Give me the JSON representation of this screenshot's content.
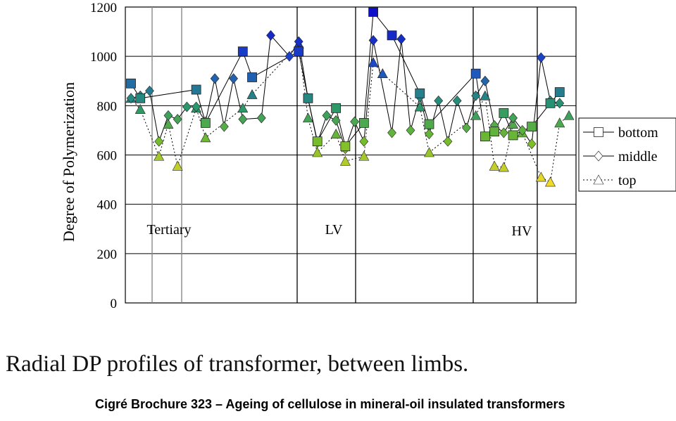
{
  "chart_data": {
    "type": "line",
    "ylabel": "Degree of Polymerization",
    "ylim": [
      0,
      1200
    ],
    "yticks": [
      0,
      200,
      400,
      600,
      800,
      1000,
      1200
    ],
    "grid": true,
    "legend_position": "right",
    "regions": [
      "Tertiary",
      "LV",
      "HV"
    ],
    "x_positions": 48,
    "series": [
      {
        "name": "bottom",
        "marker": "square",
        "line": "solid",
        "points": [
          [
            1,
            890
          ],
          [
            2,
            830
          ],
          [
            8,
            865
          ],
          [
            9,
            730
          ],
          [
            13,
            1020
          ],
          [
            14,
            915
          ],
          [
            19,
            1020
          ],
          [
            20,
            830
          ],
          [
            21,
            655
          ],
          [
            23,
            790
          ],
          [
            24,
            635
          ],
          [
            26,
            730
          ],
          [
            27,
            1180
          ],
          [
            29,
            1085
          ],
          [
            32,
            850
          ],
          [
            33,
            725
          ],
          [
            38,
            930
          ],
          [
            39,
            675
          ],
          [
            40,
            695
          ],
          [
            41,
            770
          ],
          [
            42,
            680
          ],
          [
            44,
            715
          ],
          [
            46,
            810
          ],
          [
            47,
            855
          ]
        ]
      },
      {
        "name": "middle",
        "marker": "diamond",
        "line": "solid",
        "points": [
          [
            1,
            830
          ],
          [
            2,
            840
          ],
          [
            3,
            860
          ],
          [
            4,
            655
          ],
          [
            5,
            760
          ],
          [
            6,
            745
          ],
          [
            7,
            795
          ],
          [
            8,
            795
          ],
          [
            9,
            735
          ],
          [
            10,
            910
          ],
          [
            11,
            715
          ],
          [
            12,
            910
          ],
          [
            13,
            745
          ],
          [
            15,
            750
          ],
          [
            16,
            1085
          ],
          [
            18,
            1000
          ],
          [
            19,
            1060
          ],
          [
            20,
            830
          ],
          [
            21,
            650
          ],
          [
            22,
            760
          ],
          [
            23,
            740
          ],
          [
            24,
            625
          ],
          [
            25,
            735
          ],
          [
            26,
            655
          ],
          [
            27,
            1065
          ],
          [
            29,
            690
          ],
          [
            30,
            1070
          ],
          [
            31,
            700
          ],
          [
            32,
            835
          ],
          [
            33,
            685
          ],
          [
            34,
            820
          ],
          [
            35,
            655
          ],
          [
            36,
            820
          ],
          [
            37,
            710
          ],
          [
            38,
            840
          ],
          [
            39,
            900
          ],
          [
            40,
            720
          ],
          [
            41,
            690
          ],
          [
            42,
            750
          ],
          [
            43,
            700
          ],
          [
            44,
            645
          ],
          [
            45,
            995
          ],
          [
            46,
            820
          ],
          [
            47,
            810
          ]
        ]
      },
      {
        "name": "top",
        "marker": "triangle",
        "line": "dotted",
        "points": [
          [
            1,
            830
          ],
          [
            2,
            785
          ],
          [
            4,
            595
          ],
          [
            5,
            725
          ],
          [
            6,
            555
          ],
          [
            8,
            790
          ],
          [
            9,
            670
          ],
          [
            13,
            790
          ],
          [
            14,
            845
          ],
          [
            19,
            1050
          ],
          [
            20,
            750
          ],
          [
            21,
            610
          ],
          [
            23,
            685
          ],
          [
            24,
            575
          ],
          [
            26,
            595
          ],
          [
            27,
            975
          ],
          [
            28,
            930
          ],
          [
            32,
            795
          ],
          [
            33,
            610
          ],
          [
            38,
            760
          ],
          [
            39,
            840
          ],
          [
            40,
            555
          ],
          [
            41,
            550
          ],
          [
            42,
            725
          ],
          [
            43,
            690
          ],
          [
            45,
            510
          ],
          [
            46,
            490
          ],
          [
            47,
            730
          ],
          [
            48,
            760
          ]
        ]
      }
    ]
  },
  "caption": "Radial DP profiles of transformer, between limbs.",
  "source": "Cigré Brochure 323 – Ageing of cellulose in mineral-oil insulated transformers"
}
